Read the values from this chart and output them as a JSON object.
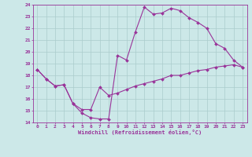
{
  "title": "",
  "xlabel": "Windchill (Refroidissement éolien,°C)",
  "bg_color": "#cce8e8",
  "grid_color": "#aacccc",
  "line_color": "#993399",
  "xlim": [
    -0.5,
    23.5
  ],
  "ylim": [
    14,
    24
  ],
  "yticks": [
    14,
    15,
    16,
    17,
    18,
    19,
    20,
    21,
    22,
    23,
    24
  ],
  "xticks": [
    0,
    1,
    2,
    3,
    4,
    5,
    6,
    7,
    8,
    9,
    10,
    11,
    12,
    13,
    14,
    15,
    16,
    17,
    18,
    19,
    20,
    21,
    22,
    23
  ],
  "series": [
    {
      "x": [
        0,
        1,
        2,
        3,
        4,
        5,
        6,
        7,
        8,
        9,
        10,
        11,
        12,
        13,
        14,
        15,
        16,
        17,
        18,
        19,
        20,
        21,
        22,
        23
      ],
      "y": [
        18.5,
        17.7,
        17.1,
        17.2,
        15.6,
        14.8,
        14.4,
        14.3,
        14.3,
        19.7,
        19.3,
        21.7,
        23.8,
        23.2,
        23.3,
        23.7,
        23.5,
        22.9,
        22.5,
        22.0,
        20.7,
        20.3,
        19.3,
        18.7
      ]
    },
    {
      "x": [
        0,
        1,
        2,
        3,
        4,
        5,
        6,
        7,
        8,
        9,
        10,
        11,
        12,
        13,
        14,
        15,
        16,
        17,
        18,
        19,
        20,
        21,
        22,
        23
      ],
      "y": [
        18.5,
        17.7,
        17.1,
        17.2,
        15.6,
        15.1,
        15.1,
        17.0,
        16.3,
        16.5,
        16.8,
        17.1,
        17.3,
        17.5,
        17.7,
        18.0,
        18.0,
        18.2,
        18.4,
        18.5,
        18.7,
        18.8,
        18.9,
        18.7
      ]
    }
  ]
}
